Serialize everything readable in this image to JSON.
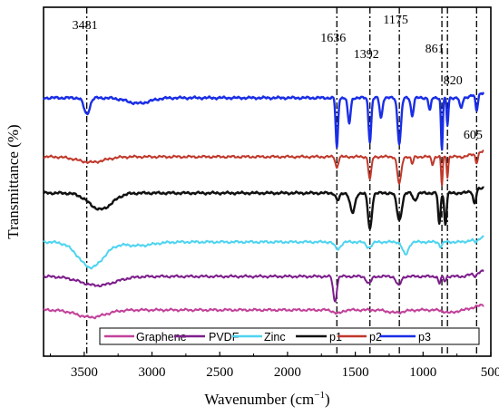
{
  "chart_data": {
    "type": "line",
    "title": "",
    "xlabel": "Wavenumber (cm",
    "xlabel_sup": "−1",
    "xlabel_end": ")",
    "ylabel": "Transmittance (%)",
    "xlim": [
      3800,
      500
    ],
    "x_reversed": true,
    "x_ticks": [
      3500,
      3000,
      2500,
      2000,
      1500,
      1000,
      500
    ],
    "y_tick_labels": false,
    "grid": false,
    "legend_placement": "bottom-inside",
    "reference_lines": [
      {
        "x": 3481,
        "label": "3481"
      },
      {
        "x": 1636,
        "label": "1636"
      },
      {
        "x": 1392,
        "label": "1392"
      },
      {
        "x": 1175,
        "label": "1175"
      },
      {
        "x": 861,
        "label": "861"
      },
      {
        "x": 820,
        "label": "820"
      },
      {
        "x": 605,
        "label": "605"
      }
    ],
    "series": [
      {
        "name": "Graphene",
        "color": "#c2429a",
        "offset": 342,
        "bands": [
          [
            3450,
            8,
            150
          ],
          [
            1630,
            4,
            40
          ],
          [
            1200,
            3,
            80
          ],
          [
            800,
            3,
            60
          ]
        ]
      },
      {
        "name": "PVDF",
        "color": "#7d1e8c",
        "offset": 305,
        "bands": [
          [
            3400,
            10,
            180
          ],
          [
            1650,
            28,
            18
          ],
          [
            1400,
            8,
            25
          ],
          [
            1180,
            10,
            25
          ],
          [
            880,
            8,
            12
          ],
          [
            840,
            5,
            12
          ],
          [
            615,
            3,
            15
          ]
        ]
      },
      {
        "name": "Zinc",
        "color": "#4fd4f0",
        "offset": 267,
        "bands": [
          [
            3450,
            28,
            130
          ],
          [
            3100,
            4,
            150
          ],
          [
            1630,
            8,
            30
          ],
          [
            1400,
            6,
            30
          ],
          [
            1130,
            14,
            30
          ],
          [
            870,
            5,
            15
          ],
          [
            610,
            4,
            20
          ]
        ]
      },
      {
        "name": "p1",
        "color": "#111111",
        "offset": 213,
        "bands": [
          [
            3380,
            18,
            120
          ],
          [
            1630,
            8,
            20
          ],
          [
            1520,
            22,
            25
          ],
          [
            1392,
            40,
            20
          ],
          [
            1175,
            30,
            25
          ],
          [
            1060,
            8,
            20
          ],
          [
            880,
            35,
            12
          ],
          [
            835,
            35,
            12
          ],
          [
            620,
            15,
            15
          ]
        ]
      },
      {
        "name": "p2",
        "color": "#c0392b",
        "offset": 173,
        "bands": [
          [
            3450,
            6,
            140
          ],
          [
            1636,
            12,
            14
          ],
          [
            1392,
            25,
            15
          ],
          [
            1175,
            30,
            20
          ],
          [
            1080,
            8,
            12
          ],
          [
            930,
            8,
            12
          ],
          [
            861,
            32,
            8
          ],
          [
            820,
            22,
            8
          ],
          [
            605,
            10,
            12
          ]
        ]
      },
      {
        "name": "p3",
        "color": "#1a2ee6",
        "offset": 108,
        "bands": [
          [
            3481,
            18,
            30
          ],
          [
            3100,
            6,
            120
          ],
          [
            1636,
            55,
            12
          ],
          [
            1545,
            28,
            15
          ],
          [
            1392,
            48,
            14
          ],
          [
            1310,
            22,
            14
          ],
          [
            1175,
            50,
            18
          ],
          [
            1080,
            20,
            14
          ],
          [
            950,
            14,
            12
          ],
          [
            861,
            58,
            9
          ],
          [
            820,
            30,
            9
          ],
          [
            720,
            12,
            14
          ],
          [
            605,
            18,
            12
          ]
        ]
      }
    ]
  }
}
